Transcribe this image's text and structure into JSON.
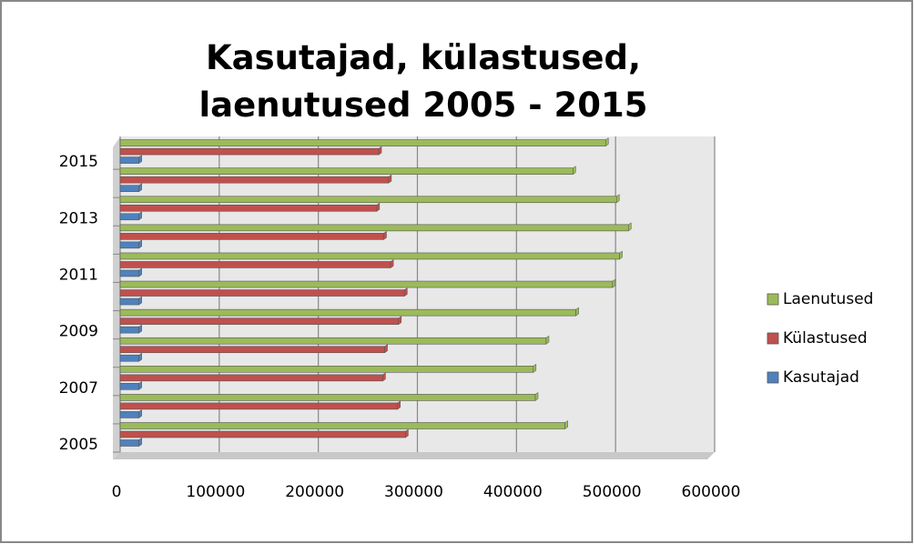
{
  "chart_data": {
    "type": "bar",
    "orientation": "horizontal",
    "title": "Kasutajad, külastused, laenutused 2005 - 2015",
    "categories": [
      "2005",
      null,
      "2007",
      null,
      "2009",
      null,
      "2011",
      null,
      "2013",
      null,
      "2015"
    ],
    "series": [
      {
        "name": "Kasutajad",
        "color": "#4f81bd",
        "values": [
          19000,
          19000,
          19000,
          19000,
          19000,
          19000,
          19000,
          19000,
          19000,
          19000,
          19000
        ]
      },
      {
        "name": "Külastused",
        "color": "#c0504d",
        "values": [
          288000,
          280000,
          265000,
          267000,
          281000,
          287000,
          273000,
          266000,
          259000,
          271000,
          261000
        ]
      },
      {
        "name": "Laenutused",
        "color": "#9bbb59",
        "values": [
          449000,
          419000,
          417000,
          430000,
          460000,
          497000,
          504000,
          513000,
          501000,
          457000,
          490000
        ]
      }
    ],
    "xlim": [
      0,
      600000
    ],
    "xticks": [
      0,
      100000,
      200000,
      300000,
      400000,
      500000,
      600000
    ],
    "grid": true,
    "legend": "right"
  }
}
